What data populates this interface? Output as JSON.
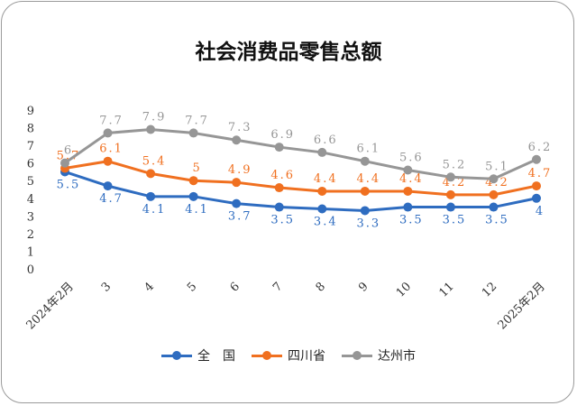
{
  "title": "社会消费品零售总额",
  "chart_data": {
    "type": "line",
    "categories": [
      "2024年2月",
      "3",
      "4",
      "5",
      "6",
      "7",
      "8",
      "9",
      "10",
      "11",
      "12",
      "2025年2月"
    ],
    "ylim": [
      0,
      9
    ],
    "yticks": [
      0,
      1,
      2,
      3,
      4,
      5,
      6,
      7,
      8,
      9
    ],
    "grid": false,
    "legend_position": "bottom",
    "series": [
      {
        "name": "全　国",
        "color": "#2e6cc0",
        "values": [
          5.5,
          4.7,
          4.1,
          4.1,
          3.7,
          3.5,
          3.4,
          3.3,
          3.5,
          3.5,
          3.5,
          4
        ],
        "labels": [
          "5.5",
          "4.7",
          "4.1",
          "4.1",
          "3.7",
          "3.5",
          "3.4",
          "3.3",
          "3.5",
          "3.5",
          "3.5",
          "4"
        ]
      },
      {
        "name": "四川省",
        "color": "#f07020",
        "values": [
          5.7,
          6.1,
          5.4,
          5,
          4.9,
          4.6,
          4.4,
          4.4,
          4.4,
          4.2,
          4.2,
          4.7
        ],
        "labels": [
          "5.7",
          "6.1",
          "5.4",
          "5",
          "4.9",
          "4.6",
          "4.4",
          "4.4",
          "4.4",
          "4.2",
          "4.2",
          "4.7"
        ]
      },
      {
        "name": "达州市",
        "color": "#969696",
        "values": [
          6,
          7.7,
          7.9,
          7.7,
          7.3,
          6.9,
          6.6,
          6.1,
          5.6,
          5.2,
          5.1,
          6.2
        ],
        "labels": [
          "6",
          "7.7",
          "7.9",
          "7.7",
          "7.3",
          "6.9",
          "6.6",
          "6.1",
          "5.6",
          "5.2",
          "5.1",
          "6.2"
        ]
      }
    ]
  }
}
